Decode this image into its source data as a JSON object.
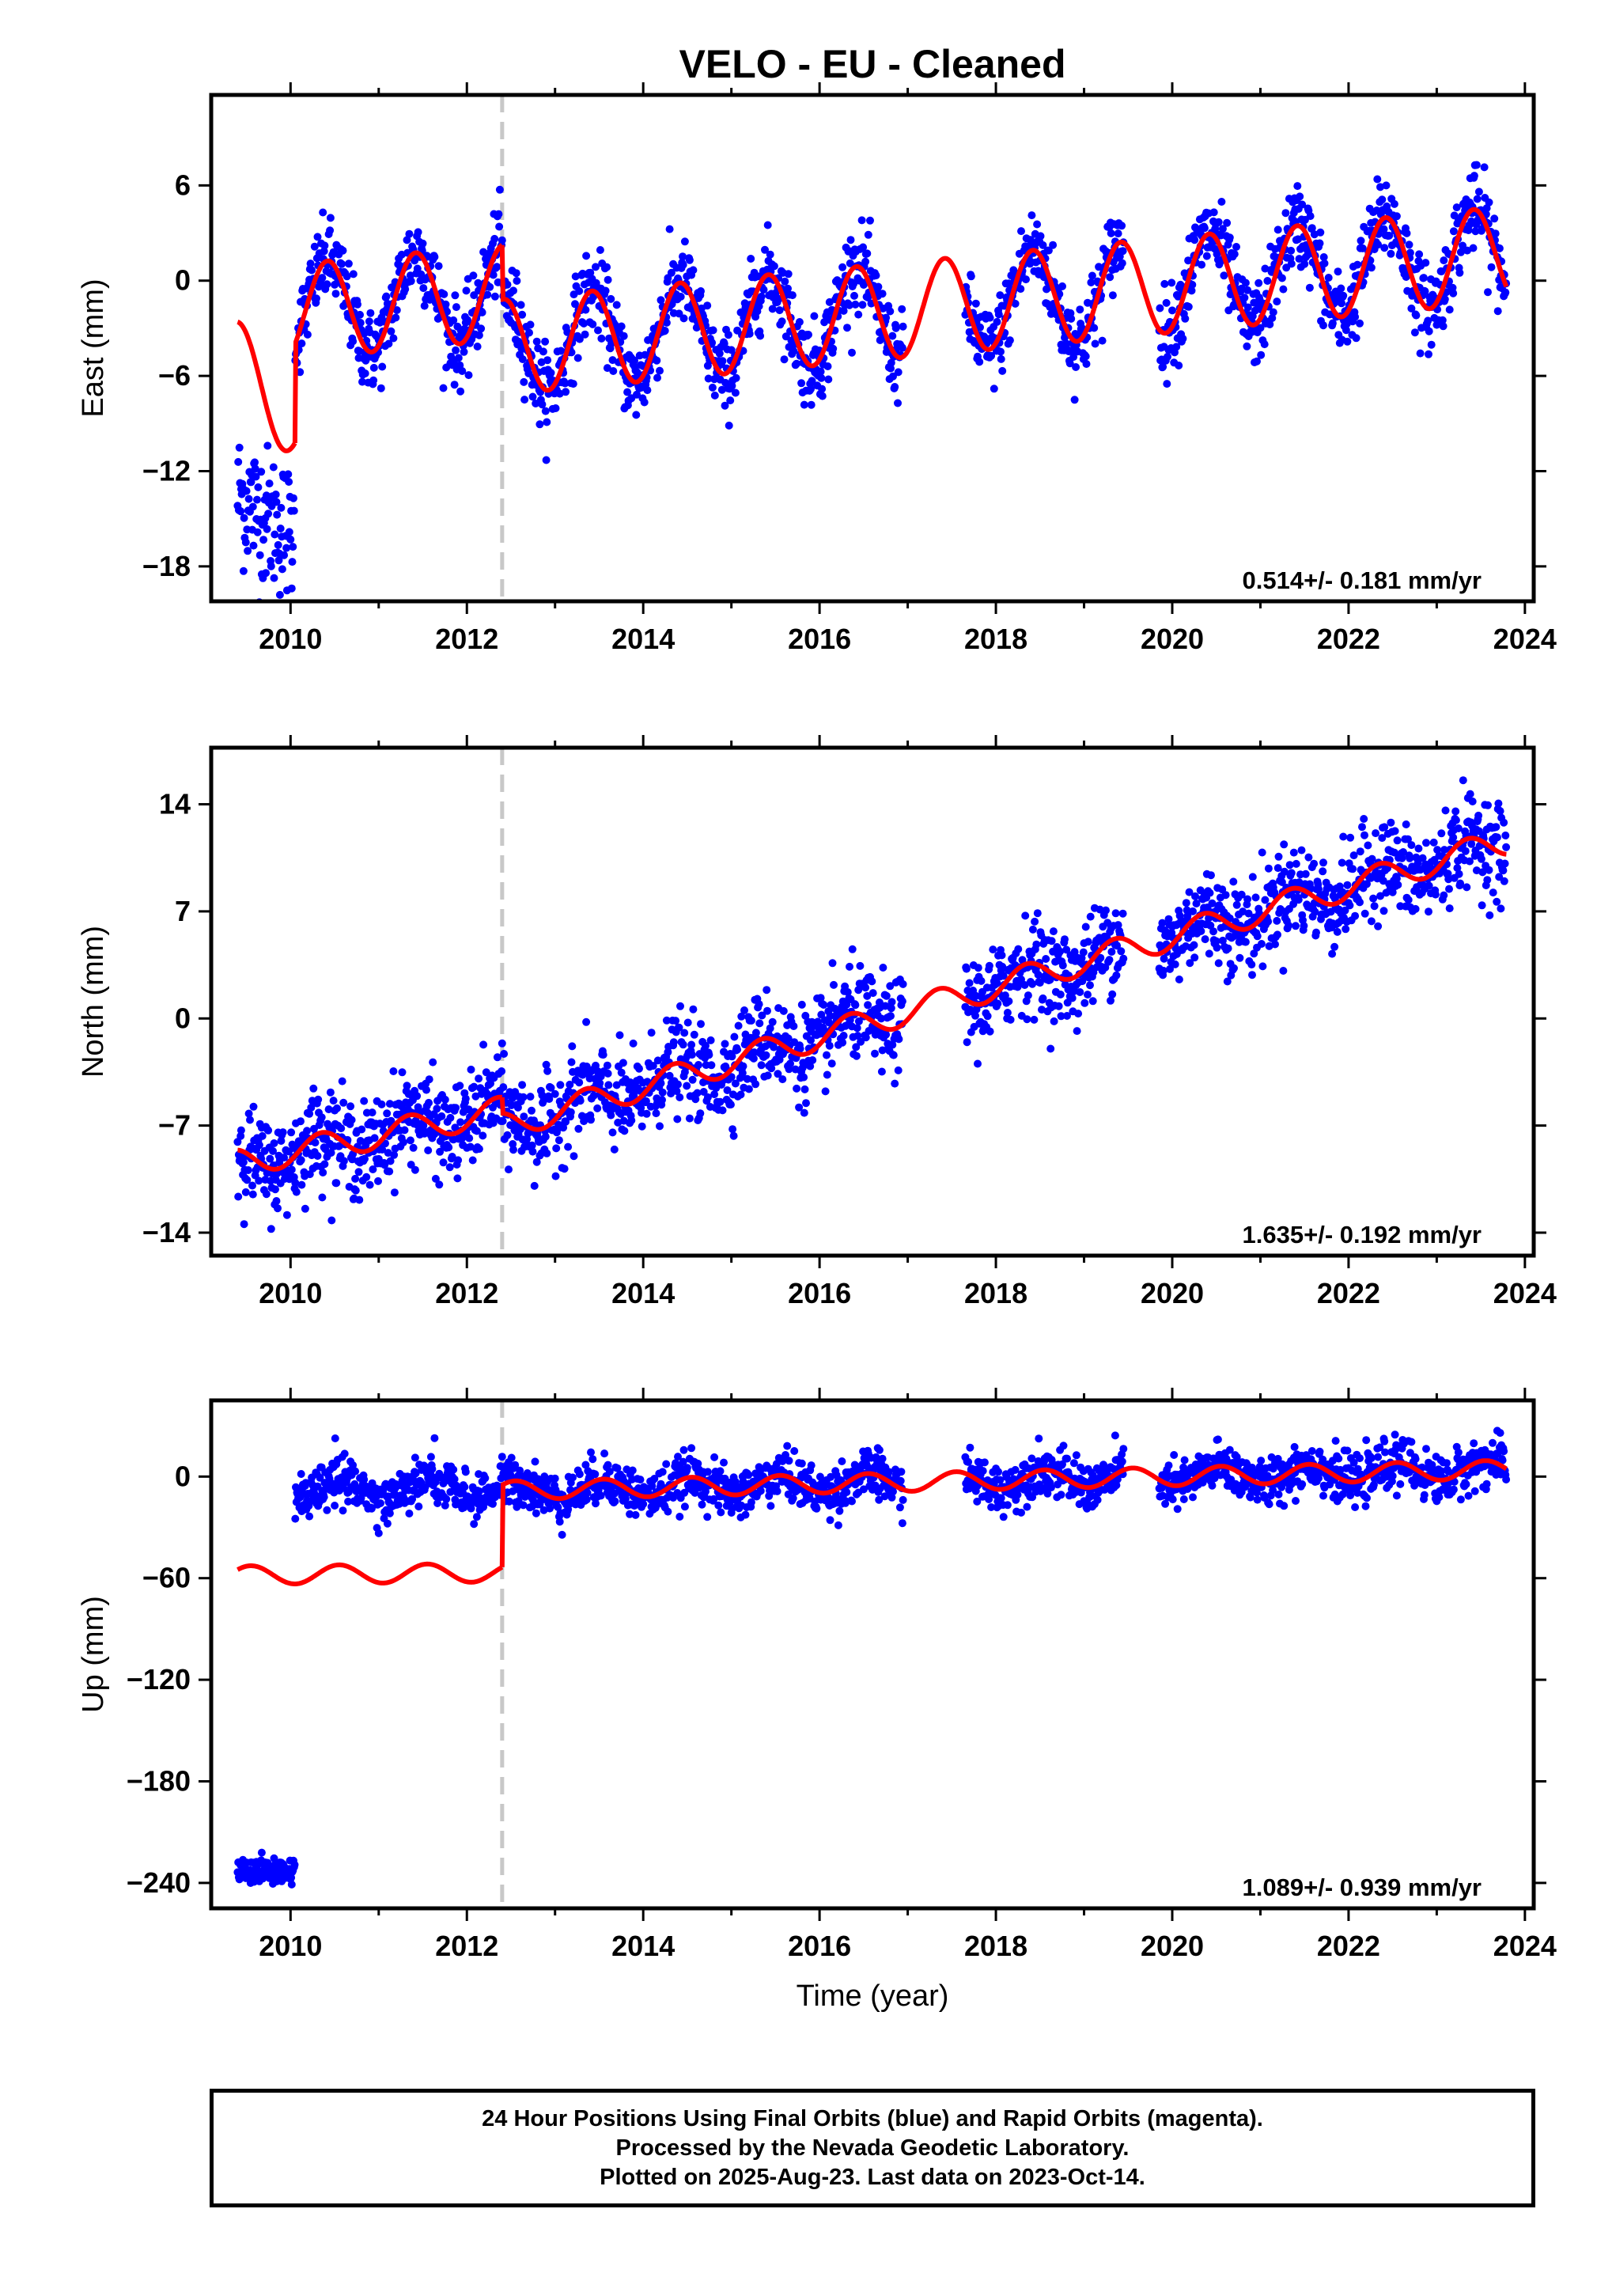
{
  "title": "VELO  - EU - Cleaned",
  "xlabel": "Time (year)",
  "footer": {
    "line1": "24 Hour Positions Using Final Orbits (blue) and Rapid Orbits (magenta).",
    "line2": "Processed by the Nevada Geodetic Laboratory.",
    "line3": "Plotted on 2025-Aug-23. Last data on 2023-Oct-14."
  },
  "colors": {
    "data": "#0000ff",
    "model": "#ff0000",
    "event": "#c8c8c8"
  },
  "chart_data": [
    {
      "type": "scatter",
      "ylabel": "East (mm)",
      "rate_label": "0.514+/- 0.181 mm/yr",
      "xlim": [
        2009.1,
        2024.1
      ],
      "ylim": [
        -20.2,
        11.7
      ],
      "xticks": [
        2010,
        2012,
        2014,
        2016,
        2018,
        2020,
        2022,
        2024
      ],
      "yticks": [
        6,
        0,
        -6,
        -12,
        -18
      ],
      "ytick_labels": [
        "6",
        "0",
        "−6",
        "−12",
        "−18"
      ],
      "event_x": 2012.4,
      "data_range": [
        2009.4,
        2023.79
      ],
      "gaps": [
        [
          2016.95,
          2017.65
        ],
        [
          2019.45,
          2019.85
        ]
      ],
      "model": {
        "rate": 0.514,
        "annual_amp": 3.0,
        "phase_peak": 0.42,
        "segments": [
          {
            "x": [
              2009.4,
              2010.05
            ],
            "y0": -2.6,
            "rate": -4.0,
            "ref": 2009.4
          },
          {
            "x": [
              2010.05,
              2012.4
            ],
            "y0": -4.0,
            "rate": 0.514,
            "ref": 2010.05
          },
          {
            "x": [
              2012.4,
              2023.79
            ],
            "y0": -1.2,
            "rate": 0.514,
            "ref": 2012.4
          }
        ]
      },
      "scatter": {
        "noise": 1.3,
        "early_offset": -13.5,
        "early_range": [
          2009.4,
          2010.05
        ]
      }
    },
    {
      "type": "scatter",
      "ylabel": "North (mm)",
      "rate_label": "1.635+/- 0.192 mm/yr",
      "xlim": [
        2009.1,
        2024.1
      ],
      "ylim": [
        -15.5,
        17.7
      ],
      "xticks": [
        2010,
        2012,
        2014,
        2016,
        2018,
        2020,
        2022,
        2024
      ],
      "yticks": [
        14,
        7,
        0,
        -7,
        -14
      ],
      "ytick_labels": [
        "14",
        "7",
        "0",
        "−7",
        "−14"
      ],
      "event_x": 2012.4,
      "data_range": [
        2009.4,
        2023.79
      ],
      "gaps": [
        [
          2016.95,
          2017.65
        ],
        [
          2019.45,
          2019.85
        ]
      ],
      "model": {
        "rate": 1.635,
        "annual_amp": 0.9,
        "phase_peak": 0.35,
        "segments": [
          {
            "x": [
              2009.4,
              2012.4
            ],
            "y0": -8.6,
            "rate": 1.15,
            "ref": 2009.4
          },
          {
            "x": [
              2012.4,
              2023.79
            ],
            "y0": -6.2,
            "rate": 1.635,
            "ref": 2012.4
          }
        ]
      },
      "scatter": {
        "noise": 1.5
      }
    },
    {
      "type": "scatter",
      "ylabel": "Up (mm)",
      "rate_label": "1.089+/- 0.939 mm/yr",
      "xlim": [
        2009.1,
        2024.1
      ],
      "ylim": [
        -255,
        45
      ],
      "xticks": [
        2010,
        2012,
        2014,
        2016,
        2018,
        2020,
        2022,
        2024
      ],
      "yticks": [
        0,
        -60,
        -120,
        -180,
        -240
      ],
      "ytick_labels": [
        "0",
        "−60",
        "−120",
        "−180",
        "−240"
      ],
      "event_x": 2012.4,
      "data_range": [
        2009.4,
        2023.79
      ],
      "gaps": [
        [
          2016.95,
          2017.65
        ],
        [
          2019.45,
          2019.85
        ]
      ],
      "model": {
        "rate": 1.089,
        "annual_amp": 5.5,
        "phase_peak": 0.55,
        "segments": [
          {
            "x": [
              2009.4,
              2012.4
            ],
            "y0": -55,
            "rate": 0.5,
            "ref": 2009.4
          },
          {
            "x": [
              2012.4,
              2023.79
            ],
            "y0": -5,
            "rate": 1.089,
            "ref": 2012.4
          }
        ]
      },
      "scatter": {
        "noise": 7,
        "early_value": -233,
        "early_range": [
          2009.4,
          2010.05
        ],
        "first_data": 2010.05
      }
    }
  ]
}
